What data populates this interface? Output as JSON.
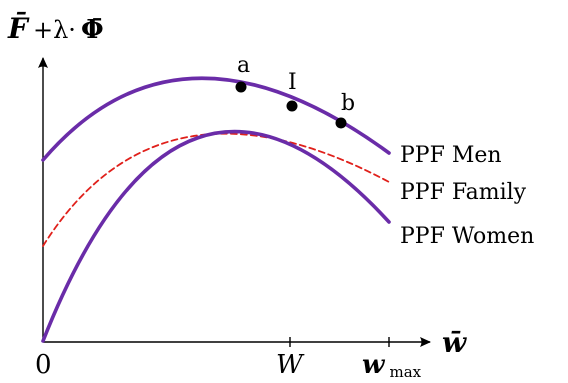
{
  "axes": {
    "y_label_main": "F̄",
    "y_label_plus": "+λ·",
    "y_label_phi": "Φ̄",
    "x_label": "w̄",
    "origin_label": "0",
    "tick_W": "W",
    "tick_wmax_base": "w",
    "tick_wmax_sub": "max"
  },
  "points": {
    "a": "a",
    "I": "I",
    "b": "b"
  },
  "curves": {
    "men": {
      "label": "PPF Men",
      "color": "#6a2ca8"
    },
    "family": {
      "label": "PPF Family",
      "color": "#e0201b"
    },
    "women": {
      "label": "PPF Women",
      "color": "#6a2ca8"
    }
  },
  "colors": {
    "points": "#000000",
    "axes": "#000000"
  }
}
